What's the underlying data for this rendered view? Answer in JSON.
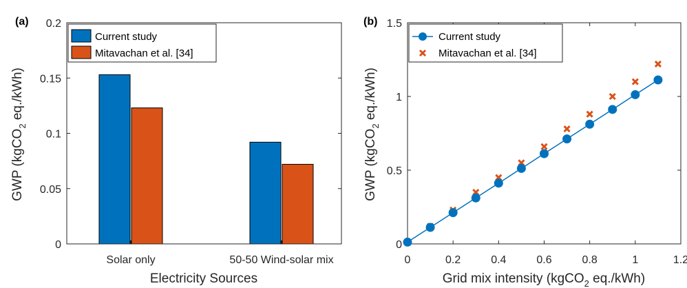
{
  "chart_data": [
    {
      "type": "bar",
      "panel_label": "(a)",
      "categories": [
        "Solar only",
        "50-50 Wind-solar mix"
      ],
      "series": [
        {
          "name": "Current study",
          "color": "#0072BD",
          "values": [
            0.153,
            0.092
          ]
        },
        {
          "name": "Mitavachan et al. [34]",
          "color": "#D95319",
          "values": [
            0.123,
            0.072
          ]
        }
      ],
      "xlabel": "Electricity Sources",
      "ylabel": {
        "prefix": "GWP (kgCO",
        "sub": "2",
        "suffix": " eq./kWh)"
      },
      "ylim": [
        0,
        0.2
      ],
      "yticks": [
        0,
        0.05,
        0.1,
        0.15,
        0.2
      ],
      "ytick_labels": [
        "0",
        "0.05",
        "0.1",
        "0.15",
        "0.2"
      ],
      "grid": false,
      "legend_position": "top-left"
    },
    {
      "type": "line",
      "panel_label": "(b)",
      "x": [
        0,
        0.1,
        0.2,
        0.3,
        0.4,
        0.5,
        0.6,
        0.7,
        0.8,
        0.9,
        1.0,
        1.1
      ],
      "series": [
        {
          "name": "Current study",
          "color": "#0072BD",
          "style": "line-circle",
          "values": [
            0.012,
            0.112,
            0.212,
            0.312,
            0.412,
            0.512,
            0.612,
            0.712,
            0.812,
            0.912,
            1.012,
            1.112
          ]
        },
        {
          "name": "Mitavachan et al. [34]",
          "color": "#D95319",
          "style": "x-marker",
          "values": [
            0.012,
            0.12,
            0.23,
            0.35,
            0.45,
            0.55,
            0.66,
            0.78,
            0.88,
            1.0,
            1.1,
            1.22
          ]
        }
      ],
      "xlabel": {
        "prefix": "Grid mix intensity (kgCO",
        "sub": "2",
        "suffix": " eq./kWh)"
      },
      "ylabel": {
        "prefix": "GWP (kgCO",
        "sub": "2",
        "suffix": " eq./kWh)"
      },
      "xlim": [
        0,
        1.2
      ],
      "ylim": [
        0,
        1.5
      ],
      "xticks": [
        0,
        0.2,
        0.4,
        0.6,
        0.8,
        1,
        1.2
      ],
      "xtick_labels": [
        "0",
        "0.2",
        "0.4",
        "0.6",
        "0.8",
        "1",
        "1.2"
      ],
      "yticks": [
        0,
        0.5,
        1,
        1.5
      ],
      "ytick_labels": [
        "0",
        "0.5",
        "1",
        "1.5"
      ],
      "grid": false,
      "legend_position": "top-left"
    }
  ]
}
